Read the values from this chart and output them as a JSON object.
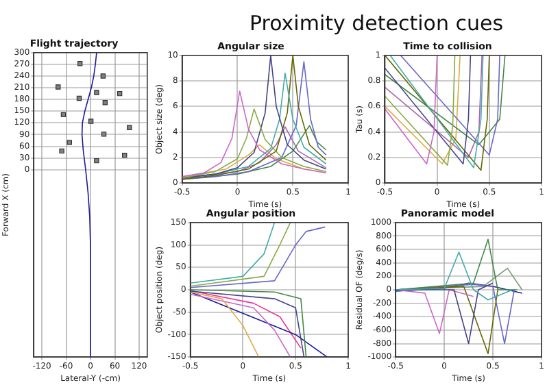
{
  "chart_data": [
    {
      "type": "other",
      "title": "Proximity detection cues"
    },
    {
      "type": "line",
      "title": "Flight trajectory",
      "xlabel": "Lateral-Y (-cm)",
      "ylabel": "Forward X (cm)",
      "xlim": [
        -140,
        140
      ],
      "xticks": [
        -120,
        -60,
        0,
        60,
        120
      ],
      "ylim": [
        -480,
        300
      ],
      "yticks": [
        0,
        30,
        60,
        90,
        120,
        150,
        180,
        210,
        240,
        270,
        300
      ],
      "grid": true,
      "legend": false,
      "series": [
        {
          "type": "line",
          "color": "#1a1a9c",
          "x": [
            0,
            0,
            -2,
            -6,
            -12,
            -18,
            -21,
            -20,
            -14,
            -6,
            2,
            8,
            12,
            15
          ],
          "values": [
            -480,
            -200,
            -120,
            -60,
            0,
            50,
            90,
            120,
            150,
            180,
            210,
            240,
            270,
            300
          ]
        },
        {
          "type": "scatter",
          "marker": "square",
          "color": "#808080",
          "x": [
            -26,
            31,
            -80,
            15,
            72,
            -28,
            36,
            -67,
            1,
            96,
            33,
            -52,
            -71,
            84,
            15
          ],
          "values": [
            272,
            240,
            212,
            198,
            195,
            183,
            172,
            141,
            124,
            108,
            91,
            70,
            48,
            37,
            23
          ]
        }
      ]
    },
    {
      "type": "line",
      "title": "Angular size",
      "xlabel": "Time (s)",
      "ylabel": "Object size (deg)",
      "xlim": [
        -0.5,
        1
      ],
      "xticks": [
        -0.5,
        0,
        0.5,
        1
      ],
      "ylim": [
        0,
        10
      ],
      "yticks": [
        0,
        2,
        4,
        6,
        8,
        10
      ],
      "grid": true,
      "legend": false,
      "series": [
        {
          "color": "#cc66cc",
          "x": [
            -0.5,
            -0.3,
            -0.15,
            -0.05,
            0.02,
            0.1,
            0.2,
            0.4,
            0.6,
            0.8
          ],
          "values": [
            0.5,
            0.8,
            1.6,
            3.5,
            7.2,
            4.2,
            2.6,
            1.5,
            1.1,
            0.8
          ]
        },
        {
          "color": "#88aa44",
          "x": [
            -0.5,
            -0.2,
            0,
            0.08,
            0.15,
            0.25,
            0.4,
            0.6,
            0.8
          ],
          "values": [
            0.4,
            0.9,
            1.9,
            3.5,
            5.8,
            3.4,
            2,
            1.3,
            0.9
          ]
        },
        {
          "color": "#444488",
          "x": [
            -0.5,
            -0.2,
            0,
            0.15,
            0.25,
            0.3,
            0.35,
            0.45,
            0.6,
            0.8
          ],
          "values": [
            0.4,
            0.7,
            1.2,
            2.4,
            5.5,
            10,
            6,
            3,
            1.8,
            1.1
          ]
        },
        {
          "color": "#44aaaa",
          "x": [
            -0.5,
            -0.2,
            0.1,
            0.3,
            0.38,
            0.43,
            0.5,
            0.6,
            0.8
          ],
          "values": [
            0.4,
            0.7,
            1.3,
            2.7,
            5,
            8.6,
            5,
            2.8,
            1.5
          ]
        },
        {
          "color": "#666600",
          "x": [
            -0.5,
            -0.2,
            0.1,
            0.35,
            0.45,
            0.5,
            0.55,
            0.65,
            0.8
          ],
          "values": [
            0.3,
            0.6,
            1.1,
            2.5,
            5.5,
            10,
            6,
            3,
            1.8
          ]
        },
        {
          "color": "#6666cc",
          "x": [
            -0.5,
            -0.2,
            0.1,
            0.4,
            0.53,
            0.6,
            0.66,
            0.73,
            0.8
          ],
          "values": [
            0.3,
            0.5,
            0.9,
            2,
            4.5,
            9.5,
            5,
            2.8,
            2.2
          ]
        },
        {
          "color": "#448844",
          "x": [
            -0.5,
            0,
            0.3,
            0.5,
            0.65,
            0.72,
            0.8
          ],
          "values": [
            0.3,
            0.7,
            1.3,
            2.5,
            4.5,
            3.2,
            2.6
          ]
        },
        {
          "color": "#aa66aa",
          "x": [
            -0.5,
            0,
            0.2,
            0.35,
            0.43,
            0.55,
            0.8
          ],
          "values": [
            0.4,
            0.9,
            1.6,
            3,
            4.4,
            2.5,
            1.2
          ]
        },
        {
          "color": "#ddaa44",
          "x": [
            -0.5,
            -0.1,
            0.1,
            0.2,
            0.35,
            0.6,
            0.8
          ],
          "values": [
            0.5,
            1.1,
            2.2,
            3,
            1.9,
            1.1,
            0.8
          ]
        }
      ]
    },
    {
      "type": "line",
      "title": "Time to collision",
      "xlabel": "Time (s)",
      "ylabel": "Tau (s)",
      "xlim": [
        -0.5,
        1
      ],
      "xticks": [
        -0.5,
        0,
        0.5,
        1
      ],
      "ylim": [
        0,
        1
      ],
      "yticks": [
        0,
        0.2,
        0.4,
        0.6,
        0.8,
        1
      ],
      "grid": true,
      "legend": false,
      "series": [
        {
          "color": "#cc66cc",
          "x": [
            -0.5,
            -0.1,
            -0.03,
            0
          ],
          "values": [
            0.58,
            0.15,
            0.4,
            1
          ]
        },
        {
          "color": "#88aa44",
          "x": [
            -0.5,
            0.1,
            0.15,
            0.17
          ],
          "values": [
            0.68,
            0.14,
            0.45,
            1
          ]
        },
        {
          "color": "#444488",
          "x": [
            -0.5,
            0.25,
            0.3,
            0.32
          ],
          "values": [
            0.9,
            0.15,
            0.5,
            1
          ]
        },
        {
          "color": "#44aaaa",
          "x": [
            -0.45,
            0.35,
            0.42,
            0.44
          ],
          "values": [
            1,
            0.12,
            0.5,
            1
          ]
        },
        {
          "color": "#666600",
          "x": [
            -0.5,
            0.42,
            0.48,
            0.5
          ],
          "values": [
            1,
            0.1,
            0.5,
            1
          ]
        },
        {
          "color": "#6666cc",
          "x": [
            -0.35,
            0.5,
            0.58,
            0.6
          ],
          "values": [
            1,
            0.22,
            0.5,
            1
          ]
        },
        {
          "color": "#448844",
          "x": [
            -0.5,
            0.4,
            0.6,
            0.65
          ],
          "values": [
            0.85,
            0.3,
            0.5,
            1
          ]
        },
        {
          "color": "#aa66aa",
          "x": [
            -0.5,
            0.3,
            0.4,
            0.43
          ],
          "values": [
            0.75,
            0.2,
            0.4,
            1
          ]
        },
        {
          "color": "#ddaa44",
          "x": [
            -0.5,
            0.05,
            0.18,
            0.22
          ],
          "values": [
            0.6,
            0.15,
            0.35,
            1
          ]
        }
      ]
    },
    {
      "type": "line",
      "title": "Angular position",
      "xlabel": "Time (s)",
      "ylabel": "Object position (deg)",
      "xlim": [
        -0.5,
        1
      ],
      "xticks": [
        -0.5,
        0,
        0.5,
        1
      ],
      "ylim": [
        -150,
        150
      ],
      "yticks": [
        -150,
        -100,
        -50,
        0,
        50,
        100,
        150
      ],
      "grid": true,
      "legend": false,
      "series": [
        {
          "color": "#44aaaa",
          "x": [
            -0.5,
            0,
            0.2,
            0.3
          ],
          "values": [
            15,
            30,
            80,
            150
          ]
        },
        {
          "color": "#88aa44",
          "x": [
            -0.5,
            0.2,
            0.35,
            0.45
          ],
          "values": [
            8,
            30,
            100,
            150
          ]
        },
        {
          "color": "#6666cc",
          "x": [
            -0.5,
            0.3,
            0.5,
            0.6,
            0.78
          ],
          "values": [
            5,
            20,
            100,
            130,
            140
          ]
        },
        {
          "color": "#ddaa44",
          "x": [
            -0.5,
            -0.2,
            0,
            0.15
          ],
          "values": [
            -5,
            -20,
            -80,
            -150
          ]
        },
        {
          "color": "#cc66cc",
          "x": [
            -0.5,
            0.1,
            0.3,
            0.45
          ],
          "values": [
            -10,
            -40,
            -90,
            -150
          ]
        },
        {
          "color": "#444488",
          "x": [
            -0.5,
            0.3,
            0.5,
            0.58
          ],
          "values": [
            -3,
            -20,
            -40,
            -150
          ]
        },
        {
          "color": "#448844",
          "x": [
            -0.5,
            0.3,
            0.55,
            0.6
          ],
          "values": [
            0,
            -5,
            -20,
            -150
          ]
        },
        {
          "color": "#1a1a9c",
          "x": [
            -0.5,
            0.5,
            0.8
          ],
          "values": [
            -5,
            -100,
            -150
          ]
        },
        {
          "color": "#ee3399",
          "x": [
            -0.5,
            0.1,
            0.35,
            0.55
          ],
          "values": [
            -2,
            -30,
            -60,
            -130
          ]
        }
      ]
    },
    {
      "type": "line",
      "title": "Panoramic model",
      "xlabel": "Time (s)",
      "ylabel": "Residual OF (deg/s)",
      "xlim": [
        -0.5,
        1
      ],
      "xticks": [
        -0.5,
        0,
        0.5,
        1
      ],
      "ylim": [
        -1000,
        1000
      ],
      "yticks": [
        -1000,
        -800,
        -600,
        -400,
        -200,
        0,
        200,
        400,
        600,
        800,
        1000
      ],
      "grid": true,
      "legend": false,
      "series": [
        {
          "color": "#44aaaa",
          "x": [
            -0.5,
            0,
            0.15,
            0.3,
            0.45,
            0.7
          ],
          "values": [
            0,
            20,
            560,
            0,
            -150,
            0
          ]
        },
        {
          "color": "#448844",
          "x": [
            -0.5,
            0.3,
            0.45,
            0.55,
            0.75
          ],
          "values": [
            0,
            100,
            750,
            0,
            0
          ]
        },
        {
          "color": "#444488",
          "x": [
            -0.5,
            0.1,
            0.25,
            0.35,
            0.5
          ],
          "values": [
            0,
            0,
            -800,
            0,
            100
          ]
        },
        {
          "color": "#cc66cc",
          "x": [
            -0.5,
            -0.2,
            -0.05,
            0.05,
            0.3
          ],
          "values": [
            0,
            -50,
            -650,
            0,
            -100
          ]
        },
        {
          "color": "#666600",
          "x": [
            -0.5,
            0.2,
            0.45,
            0.55
          ],
          "values": [
            0,
            50,
            -950,
            0
          ]
        },
        {
          "color": "#6666cc",
          "x": [
            -0.5,
            0.3,
            0.5,
            0.62,
            0.72
          ],
          "values": [
            0,
            80,
            50,
            -800,
            0
          ]
        },
        {
          "color": "#779977",
          "x": [
            -0.5,
            0.4,
            0.65,
            0.8
          ],
          "values": [
            0,
            50,
            320,
            0
          ]
        },
        {
          "color": "#1a1a9c",
          "x": [
            -0.5,
            0,
            0.25,
            0.5,
            0.8
          ],
          "values": [
            -20,
            20,
            100,
            50,
            -50
          ]
        }
      ]
    }
  ]
}
